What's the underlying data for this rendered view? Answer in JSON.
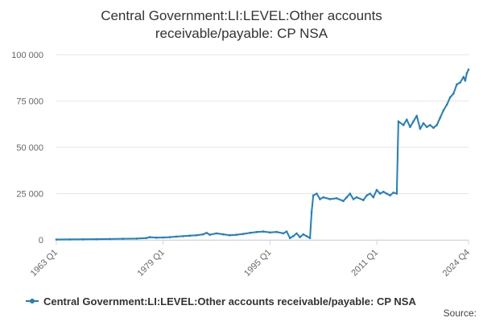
{
  "title_lines": [
    "Central Government:LI:LEVEL:Other accounts",
    "receivable/payable: CP NSA"
  ],
  "source_label": "Source:",
  "colors": {
    "series": "#1f7fbf",
    "grid": "#e6e6e6",
    "axis": "#ccd6eb",
    "text": "#666666"
  },
  "chart_data": {
    "type": "line",
    "title": "Central Government:LI:LEVEL:Other accounts receivable/payable: CP NSA",
    "xlabel": "",
    "ylabel": "",
    "x_range": [
      1963.0,
      2024.75
    ],
    "ylim": [
      0,
      100000
    ],
    "y_ticks": [
      0,
      25000,
      50000,
      75000,
      100000
    ],
    "y_tick_labels": [
      "0",
      "25 000",
      "50 000",
      "75 000",
      "100 000"
    ],
    "x_ticks": [
      1963.0,
      1979.0,
      1995.0,
      2011.0,
      2024.75
    ],
    "x_tick_labels": [
      "1963 Q1",
      "1979 Q1",
      "1995 Q1",
      "2011 Q1",
      "2024 Q4"
    ],
    "grid": true,
    "legend_position": "bottom",
    "series": [
      {
        "name": "Central Government:LI:LEVEL:Other accounts receivable/payable: CP NSA",
        "points": [
          [
            1963.0,
            200
          ],
          [
            1965.0,
            250
          ],
          [
            1967.0,
            300
          ],
          [
            1969.0,
            400
          ],
          [
            1971.0,
            500
          ],
          [
            1973.0,
            600
          ],
          [
            1975.0,
            700
          ],
          [
            1976.5,
            1000
          ],
          [
            1977.0,
            1500
          ],
          [
            1978.0,
            1200
          ],
          [
            1979.0,
            1300
          ],
          [
            1980.0,
            1500
          ],
          [
            1981.0,
            1800
          ],
          [
            1982.0,
            2000
          ],
          [
            1983.0,
            2300
          ],
          [
            1984.0,
            2500
          ],
          [
            1985.0,
            3000
          ],
          [
            1985.5,
            3800
          ],
          [
            1986.0,
            2800
          ],
          [
            1987.0,
            3500
          ],
          [
            1988.0,
            3000
          ],
          [
            1989.0,
            2500
          ],
          [
            1990.0,
            2800
          ],
          [
            1991.0,
            3200
          ],
          [
            1992.0,
            3800
          ],
          [
            1993.0,
            4200
          ],
          [
            1994.0,
            4500
          ],
          [
            1995.0,
            4000
          ],
          [
            1996.0,
            4300
          ],
          [
            1997.0,
            3500
          ],
          [
            1997.5,
            4500
          ],
          [
            1998.0,
            1000
          ],
          [
            1998.5,
            2000
          ],
          [
            1999.0,
            3500
          ],
          [
            1999.5,
            1500
          ],
          [
            2000.0,
            3000
          ],
          [
            2000.5,
            2000
          ],
          [
            2001.0,
            1000
          ],
          [
            2001.25,
            15000
          ],
          [
            2001.5,
            24000
          ],
          [
            2002.0,
            25000
          ],
          [
            2002.5,
            22000
          ],
          [
            2003.0,
            23000
          ],
          [
            2004.0,
            22000
          ],
          [
            2005.0,
            22500
          ],
          [
            2006.0,
            21000
          ],
          [
            2006.5,
            23000
          ],
          [
            2007.0,
            25000
          ],
          [
            2007.5,
            22000
          ],
          [
            2008.0,
            23000
          ],
          [
            2009.0,
            21500
          ],
          [
            2009.5,
            24000
          ],
          [
            2010.0,
            25000
          ],
          [
            2010.5,
            23000
          ],
          [
            2011.0,
            27000
          ],
          [
            2011.5,
            25000
          ],
          [
            2012.0,
            26000
          ],
          [
            2012.5,
            25000
          ],
          [
            2013.0,
            24000
          ],
          [
            2013.5,
            25500
          ],
          [
            2014.0,
            25000
          ],
          [
            2014.25,
            64000
          ],
          [
            2015.0,
            62000
          ],
          [
            2015.5,
            65000
          ],
          [
            2016.0,
            61000
          ],
          [
            2016.5,
            64000
          ],
          [
            2017.0,
            67000
          ],
          [
            2017.5,
            60000
          ],
          [
            2018.0,
            63000
          ],
          [
            2018.5,
            61000
          ],
          [
            2019.0,
            62000
          ],
          [
            2019.5,
            60500
          ],
          [
            2020.0,
            62000
          ],
          [
            2020.5,
            66000
          ],
          [
            2021.0,
            70000
          ],
          [
            2021.5,
            73000
          ],
          [
            2022.0,
            77000
          ],
          [
            2022.5,
            79000
          ],
          [
            2023.0,
            84000
          ],
          [
            2023.5,
            85000
          ],
          [
            2024.0,
            88000
          ],
          [
            2024.25,
            86000
          ],
          [
            2024.5,
            90000
          ],
          [
            2024.75,
            92000
          ]
        ]
      }
    ]
  }
}
